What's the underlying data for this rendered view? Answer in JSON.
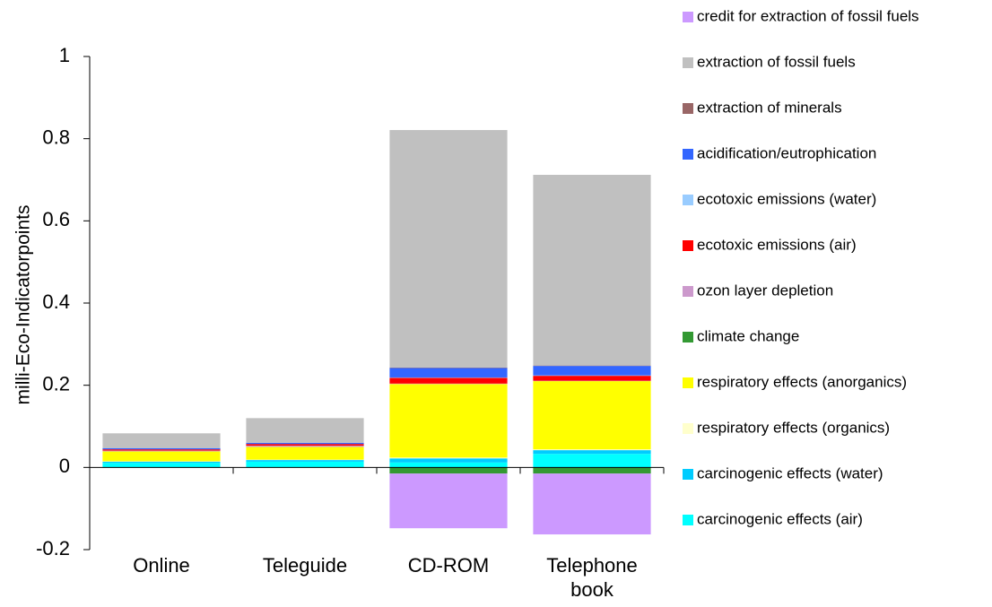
{
  "chart_data": {
    "type": "bar",
    "stacked": true,
    "y_label": "milli-Eco-Indicatorpoints",
    "categories": [
      "Online",
      "Teleguide",
      "CD-ROM",
      "Telephone book"
    ],
    "ylim": [
      -0.2,
      1
    ],
    "yticks": [
      -0.2,
      0,
      0.2,
      0.4,
      0.6,
      0.8,
      1
    ],
    "series": [
      {
        "name": "carcinogenic effects (air)",
        "color": "#00ffff",
        "values": [
          0.011,
          0.014,
          0.012,
          0.033
        ]
      },
      {
        "name": "carcinogenic effects (water)",
        "color": "#00ccff",
        "values": [
          0.003,
          0.004,
          0.01,
          0.009
        ]
      },
      {
        "name": "respiratory effects (organics)",
        "color": "#ffffcc",
        "values": [
          0.001,
          0.001,
          0.002,
          0.002
        ]
      },
      {
        "name": "respiratory effects (anorganics)",
        "color": "#ffff00",
        "values": [
          0.024,
          0.031,
          0.179,
          0.166
        ]
      },
      {
        "name": "climate change",
        "color": "#339933",
        "values": [
          0,
          0,
          -0.015,
          -0.015
        ]
      },
      {
        "name": "ozon layer depletion",
        "color": "#cc99cc",
        "values": [
          0.002,
          0.003,
          0.001,
          0.001
        ]
      },
      {
        "name": "ecotoxic emissions (air)",
        "color": "#ff0000",
        "values": [
          0.003,
          0.004,
          0.014,
          0.012
        ]
      },
      {
        "name": "ecotoxic emissions (water)",
        "color": "#99ccff",
        "values": [
          0,
          0,
          0.001,
          0.001
        ]
      },
      {
        "name": "acidification/eutrophication",
        "color": "#3366ff",
        "values": [
          0.003,
          0.003,
          0.023,
          0.023
        ]
      },
      {
        "name": "extraction of minerals",
        "color": "#996666",
        "values": [
          0,
          0,
          0.001,
          0.001
        ]
      },
      {
        "name": "extraction of fossil fuels",
        "color": "#c0c0c0",
        "values": [
          0.036,
          0.06,
          0.578,
          0.464
        ]
      },
      {
        "name": "credit for extraction of fossil fuels",
        "color": "#cc99ff",
        "values": [
          0,
          0,
          -0.133,
          -0.148
        ]
      }
    ]
  }
}
